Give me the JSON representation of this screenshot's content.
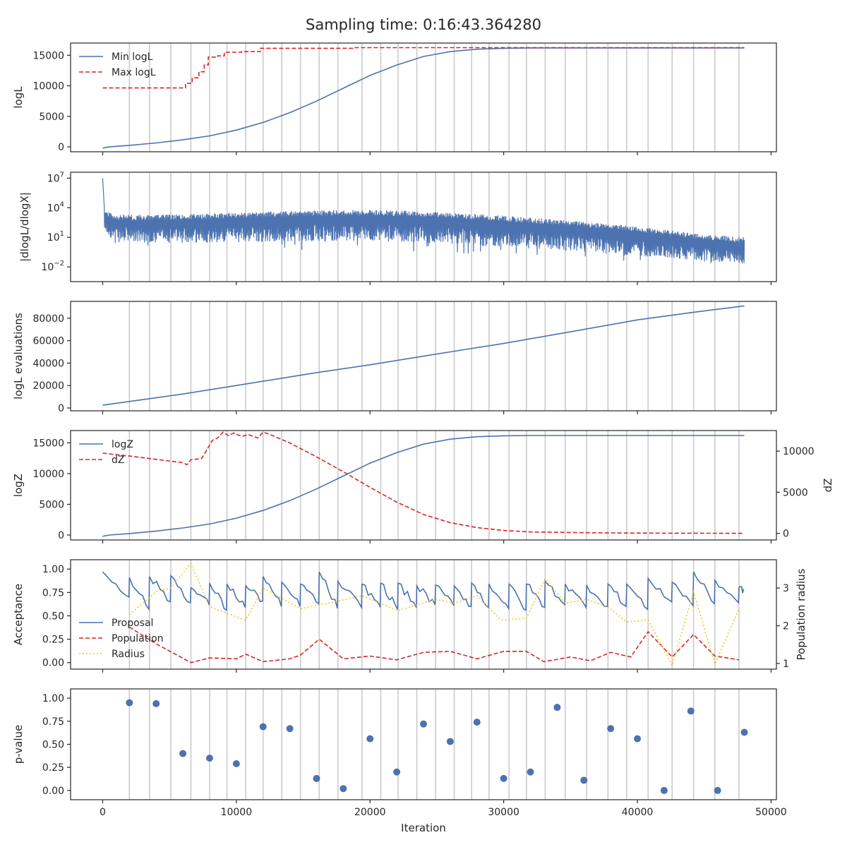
{
  "colors": {
    "blue": "#4c72b0",
    "red": "#d62728",
    "gold": "#f5c518",
    "grid": "#c8c8c8",
    "axis": "#262626"
  },
  "chart_data": {
    "type": "line",
    "title": "Sampling time: 0:16:43.364280",
    "xlabel": "Iteration",
    "xlim": [
      -2400,
      50400
    ],
    "xticks": [
      0,
      10000,
      20000,
      30000,
      40000,
      50000
    ],
    "xtick_labels": [
      "0",
      "10000",
      "20000",
      "30000",
      "40000",
      "50000"
    ],
    "vertical_lines": [
      2000,
      3500,
      5100,
      6600,
      8000,
      9300,
      10700,
      12000,
      13400,
      14800,
      16200,
      17600,
      19400,
      20800,
      22100,
      23500,
      24900,
      26300,
      27600,
      28900,
      30400,
      31700,
      33100,
      34600,
      36200,
      37800,
      39200,
      40800,
      42600,
      44200,
      45800,
      47600
    ],
    "panels": [
      {
        "id": "logL",
        "ylabel": "logL",
        "ylim": [
          -800,
          17000
        ],
        "yticks": [
          0,
          5000,
          10000,
          15000
        ],
        "ytick_labels": [
          "0",
          "5000",
          "10000",
          "15000"
        ],
        "legend": "top-left",
        "series": [
          {
            "name": "Min logL",
            "style": "solid",
            "color": "blue",
            "x": [
              0,
              500,
              2000,
              4000,
              6000,
              8000,
              10000,
              12000,
              14000,
              16000,
              18000,
              20000,
              22000,
              24000,
              26000,
              28000,
              30000,
              32000,
              34000,
              36000,
              38000,
              40000,
              44000,
              48000
            ],
            "y": [
              -200,
              0,
              250,
              650,
              1150,
              1800,
              2750,
              4000,
              5600,
              7500,
              9600,
              11700,
              13400,
              14800,
              15600,
              16000,
              16150,
              16200,
              16200,
              16200,
              16200,
              16200,
              16200,
              16200
            ]
          },
          {
            "name": "Max logL",
            "style": "dashed",
            "color": "red",
            "x": [
              0,
              6200,
              6200,
              6700,
              6700,
              7200,
              7200,
              7600,
              7600,
              7900,
              7900,
              8600,
              8600,
              9100,
              9100,
              10400,
              10400,
              11800,
              11800,
              18700,
              18700,
              48000
            ],
            "y": [
              9650,
              9650,
              10400,
              10400,
              11300,
              11300,
              12300,
              12300,
              13400,
              13400,
              14700,
              14700,
              14900,
              14900,
              15500,
              15500,
              15600,
              15600,
              16150,
              16150,
              16250,
              16250
            ]
          }
        ]
      },
      {
        "id": "dlogL",
        "ylabel": "|dlogL/dlogX|",
        "yscale": "log",
        "ylim_log10": [
          -3.5,
          7.6
        ],
        "yticks_log10": [
          7,
          4,
          1,
          -2
        ],
        "ytick_labels": [
          {
            "base": "10",
            "exp": "7"
          },
          {
            "base": "10",
            "exp": "4"
          },
          {
            "base": "10",
            "exp": "1"
          },
          {
            "base": "10",
            "exp": "−2"
          }
        ],
        "series": [
          {
            "name": "",
            "style": "noisy",
            "color": "blue",
            "envelope_x": [
              0,
              150,
              1000,
              5000,
              10000,
              15000,
              20000,
              25000,
              30000,
              35000,
              40000,
              45000,
              48000
            ],
            "envelope_upper_log10": [
              7.0,
              3.8,
              3.3,
              3.3,
              3.5,
              3.7,
              3.8,
              3.6,
              3.2,
              2.7,
              2.1,
              1.3,
              1.0
            ],
            "envelope_lower_log10": [
              4.0,
              1.5,
              0.5,
              0.4,
              0.5,
              0.6,
              0.6,
              0.4,
              0.0,
              -0.4,
              -0.9,
              -1.4,
              -1.8
            ]
          }
        ]
      },
      {
        "id": "evals",
        "ylabel": "logL evaluations",
        "ylim": [
          -2500,
          95000
        ],
        "yticks": [
          0,
          20000,
          40000,
          60000,
          80000
        ],
        "ytick_labels": [
          "0",
          "20000",
          "40000",
          "60000",
          "80000"
        ],
        "series": [
          {
            "name": "",
            "style": "solid",
            "color": "blue",
            "x": [
              0,
              2000,
              6000,
              10000,
              16000,
              20000,
              26000,
              30000,
              36000,
              40000,
              44000,
              48000
            ],
            "y": [
              2500,
              5800,
              12500,
              20000,
              31500,
              38500,
              50000,
              57500,
              70000,
              78500,
              85000,
              91000
            ]
          }
        ]
      },
      {
        "id": "logZ",
        "ylabel": "logZ",
        "ylabel_right": "dZ",
        "ylim": [
          -800,
          17000
        ],
        "yticks": [
          0,
          5000,
          10000,
          15000
        ],
        "ytick_labels": [
          "0",
          "5000",
          "10000",
          "15000"
        ],
        "ylim_right": [
          -800,
          12500
        ],
        "yticks_right": [
          0,
          5000,
          10000
        ],
        "ytick_labels_right": [
          "0",
          "5000",
          "10000"
        ],
        "legend": "top-left",
        "series": [
          {
            "name": "logZ",
            "style": "solid",
            "color": "blue",
            "axis": "left",
            "x": [
              0,
              500,
              2000,
              4000,
              6000,
              8000,
              10000,
              12000,
              14000,
              16000,
              18000,
              20000,
              22000,
              24000,
              26000,
              28000,
              30000,
              32000,
              36000,
              40000,
              48000
            ],
            "y": [
              -200,
              0,
              250,
              650,
              1150,
              1800,
              2750,
              4000,
              5600,
              7500,
              9600,
              11700,
              13400,
              14800,
              15600,
              16000,
              16150,
              16200,
              16200,
              16200,
              16200
            ]
          },
          {
            "name": "dZ",
            "style": "dashed",
            "color": "red",
            "axis": "right",
            "x": [
              0,
              2000,
              4000,
              6000,
              6300,
              6600,
              7400,
              7700,
              8200,
              8600,
              9000,
              9400,
              9800,
              10400,
              10900,
              11600,
              12000,
              12400,
              14000,
              16000,
              18000,
              20000,
              22000,
              24000,
              26000,
              28000,
              30000,
              32000,
              36000,
              40000,
              48000
            ],
            "y": [
              9750,
              9400,
              9000,
              8600,
              8350,
              8950,
              9100,
              9900,
              11300,
              11600,
              12300,
              11900,
              12200,
              11800,
              12000,
              11600,
              12300,
              12100,
              11000,
              9300,
              7500,
              5600,
              3800,
              2300,
              1300,
              700,
              350,
              180,
              80,
              30,
              10
            ]
          }
        ]
      },
      {
        "id": "acceptance",
        "ylabel": "Acceptance",
        "ylabel_right": "Population radius",
        "ylim": [
          -0.07,
          1.1
        ],
        "yticks": [
          0.0,
          0.25,
          0.5,
          0.75,
          1.0
        ],
        "ytick_labels": [
          "0.00",
          "0.25",
          "0.50",
          "0.75",
          "1.00"
        ],
        "ylim_right": [
          0.85,
          3.75
        ],
        "yticks_right": [
          1,
          2,
          3
        ],
        "ytick_labels_right": [
          "1",
          "2",
          "3"
        ],
        "legend": "lower-left",
        "series": [
          {
            "name": "Proposal",
            "style": "sawtooth",
            "color": "blue",
            "axis": "left",
            "cycle_x": [
              0,
              2000,
              3500,
              5100,
              6600,
              8000,
              9300,
              10700,
              12000,
              13400,
              14800,
              16200,
              17600,
              19400,
              20800,
              22100,
              23500,
              24900,
              26300,
              27600,
              28900,
              30400,
              31700,
              33100,
              34600,
              36200,
              37800,
              39200,
              40800,
              42600,
              44200,
              45800,
              47600
            ],
            "cycle_peak": [
              0.97,
              0.91,
              0.92,
              0.93,
              0.8,
              0.85,
              0.84,
              0.82,
              0.92,
              0.86,
              0.84,
              0.97,
              0.87,
              0.84,
              0.85,
              0.85,
              0.82,
              0.83,
              0.82,
              0.85,
              0.84,
              0.84,
              0.84,
              0.87,
              0.84,
              0.83,
              0.84,
              0.84,
              0.9,
              0.86,
              0.97,
              0.88,
              0.8
            ],
            "cycle_trough": [
              0.7,
              0.57,
              0.65,
              0.64,
              0.62,
              0.56,
              0.59,
              0.66,
              0.6,
              0.6,
              0.63,
              0.58,
              0.59,
              0.6,
              0.57,
              0.59,
              0.62,
              0.61,
              0.6,
              0.59,
              0.58,
              0.56,
              0.59,
              0.62,
              0.59,
              0.6,
              0.6,
              0.57,
              0.65,
              0.61,
              0.63,
              0.64,
              0.77
            ]
          },
          {
            "name": "Population",
            "style": "dashed",
            "color": "red",
            "axis": "left",
            "x": [
              2000,
              4000,
              6600,
              8000,
              10000,
              10700,
              12000,
              14000,
              14800,
              16200,
              18000,
              20000,
              22000,
              24000,
              26000,
              28000,
              30000,
              31700,
              33000,
              35000,
              36500,
              38000,
              39500,
              40800,
              42600,
              44200,
              45800,
              47600
            ],
            "y": [
              0.38,
              0.2,
              0.0,
              0.05,
              0.04,
              0.09,
              0.01,
              0.04,
              0.08,
              0.25,
              0.04,
              0.07,
              0.03,
              0.11,
              0.12,
              0.04,
              0.12,
              0.12,
              0.01,
              0.06,
              0.02,
              0.11,
              0.06,
              0.33,
              0.06,
              0.3,
              0.07,
              0.03
            ]
          },
          {
            "name": "Radius",
            "style": "dotted",
            "color": "gold",
            "axis": "right",
            "x": [
              2000,
              4000,
              5100,
              6600,
              8000,
              10700,
              12000,
              14800,
              17600,
              19400,
              22100,
              24900,
              26300,
              28000,
              29800,
              31700,
              33100,
              34600,
              36200,
              37800,
              39200,
              40800,
              42600,
              44200,
              45800,
              47600
            ],
            "y": [
              2.3,
              2.9,
              3.0,
              3.65,
              2.5,
              2.15,
              3.0,
              2.45,
              2.65,
              2.8,
              2.4,
              2.7,
              2.6,
              2.8,
              2.15,
              2.2,
              3.25,
              2.6,
              2.7,
              2.5,
              2.1,
              2.15,
              0.95,
              2.9,
              0.98,
              2.45
            ]
          }
        ]
      },
      {
        "id": "pvalue",
        "ylabel": "p-value",
        "ylim": [
          -0.1,
          1.1
        ],
        "yticks": [
          0.0,
          0.25,
          0.5,
          0.75,
          1.0
        ],
        "ytick_labels": [
          "0.00",
          "0.25",
          "0.50",
          "0.75",
          "1.00"
        ],
        "series": [
          {
            "name": "",
            "style": "scatter",
            "color": "blue",
            "x": [
              2000,
              4000,
              6000,
              8000,
              10000,
              12000,
              14000,
              16000,
              18000,
              20000,
              22000,
              24000,
              26000,
              28000,
              30000,
              32000,
              34000,
              36000,
              38000,
              40000,
              42000,
              44000,
              46000,
              48000
            ],
            "y": [
              0.95,
              0.94,
              0.4,
              0.35,
              0.29,
              0.69,
              0.67,
              0.13,
              0.02,
              0.56,
              0.2,
              0.72,
              0.53,
              0.74,
              0.13,
              0.2,
              0.9,
              0.11,
              0.67,
              0.56,
              0.0,
              0.86,
              0.0,
              0.63
            ]
          }
        ]
      }
    ]
  }
}
